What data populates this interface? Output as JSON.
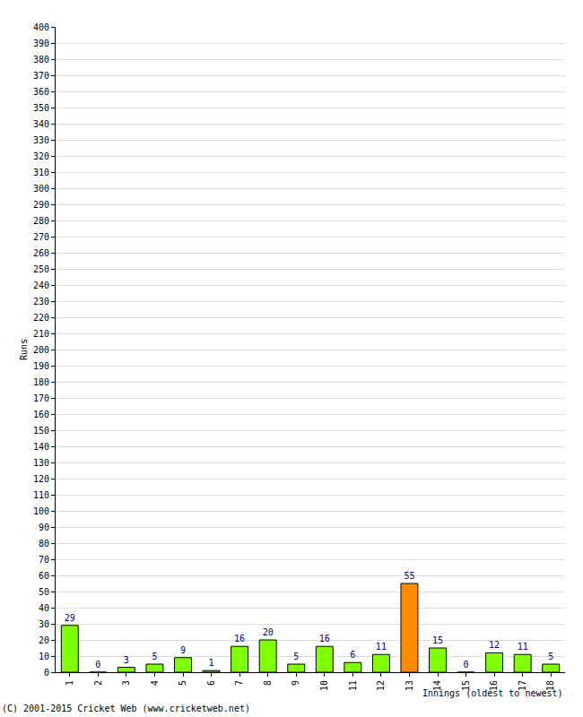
{
  "chart_data": {
    "type": "bar",
    "xlabel": "Innings (oldest to newest)",
    "ylabel": "Runs",
    "categories": [
      "1",
      "2",
      "3",
      "4",
      "5",
      "6",
      "7",
      "8",
      "9",
      "10",
      "11",
      "12",
      "13",
      "14",
      "15",
      "16",
      "17",
      "18"
    ],
    "values": [
      29,
      0,
      3,
      5,
      9,
      1,
      16,
      20,
      5,
      16,
      6,
      11,
      55,
      15,
      0,
      12,
      11,
      5
    ],
    "colors": [
      "#7fff00",
      "#7fff00",
      "#7fff00",
      "#7fff00",
      "#7fff00",
      "#7fff00",
      "#7fff00",
      "#7fff00",
      "#7fff00",
      "#7fff00",
      "#7fff00",
      "#7fff00",
      "#ff8c00",
      "#7fff00",
      "#7fff00",
      "#7fff00",
      "#7fff00",
      "#7fff00"
    ],
    "ylim": [
      0,
      400
    ],
    "yticks": [
      0,
      10,
      20,
      30,
      40,
      50,
      60,
      70,
      80,
      90,
      100,
      110,
      120,
      130,
      140,
      150,
      160,
      170,
      180,
      190,
      200,
      210,
      220,
      230,
      240,
      250,
      260,
      270,
      280,
      290,
      300,
      310,
      320,
      330,
      340,
      350,
      360,
      370,
      380,
      390,
      400
    ],
    "grid": true,
    "data_labels": true,
    "annotations": [
      "(C) 2001-2015 Cricket Web (www.cricketweb.net)"
    ]
  }
}
